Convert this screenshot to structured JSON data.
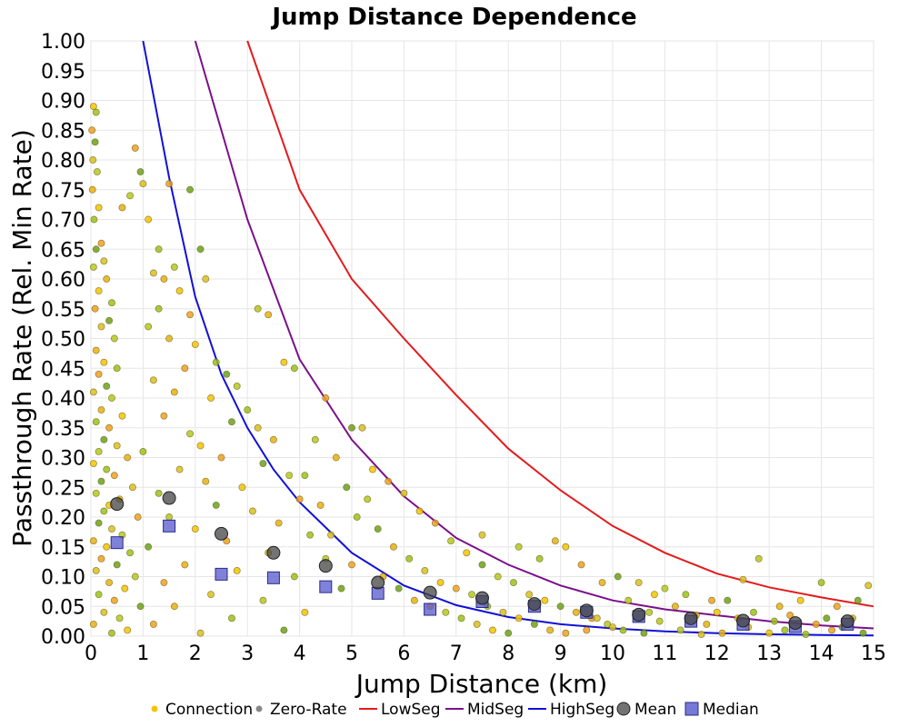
{
  "chart_data": {
    "type": "scatter",
    "title": "Jump Distance Dependence",
    "xlabel": "Jump Distance (km)",
    "ylabel": "Passthrough Rate (Rel. Min Rate)",
    "xlim": [
      0,
      15
    ],
    "ylim": [
      0,
      1.0
    ],
    "x_ticks": [
      "0",
      "1",
      "2",
      "3",
      "4",
      "5",
      "6",
      "7",
      "8",
      "9",
      "10",
      "11",
      "12",
      "13",
      "14",
      "15"
    ],
    "y_ticks": [
      "0.00",
      "0.05",
      "0.10",
      "0.15",
      "0.20",
      "0.25",
      "0.30",
      "0.35",
      "0.40",
      "0.45",
      "0.50",
      "0.55",
      "0.60",
      "0.65",
      "0.70",
      "0.75",
      "0.80",
      "0.85",
      "0.90",
      "0.95",
      "1.00"
    ],
    "grid": true,
    "legend_position": "bottom",
    "legend": [
      {
        "label": "Connection",
        "kind": "dot",
        "color": "#f5c400"
      },
      {
        "label": "Zero-Rate",
        "kind": "dot",
        "color": "#888888"
      },
      {
        "label": "LowSeg",
        "kind": "line",
        "color": "#e41a1c"
      },
      {
        "label": "MidSeg",
        "kind": "line",
        "color": "#7b0f8c"
      },
      {
        "label": "HighSeg",
        "kind": "line",
        "color": "#1010d8"
      },
      {
        "label": "Mean",
        "kind": "circle",
        "color": "#555555"
      },
      {
        "label": "Median",
        "kind": "square",
        "color": "#5558cc"
      }
    ],
    "curves": [
      {
        "name": "LowSeg",
        "color": "#e41a1c",
        "x": [
          3,
          4,
          5,
          6,
          7,
          8,
          9,
          10,
          11,
          12,
          13,
          14,
          15
        ],
        "y": [
          1.0,
          0.75,
          0.6,
          0.5,
          0.405,
          0.315,
          0.245,
          0.185,
          0.14,
          0.105,
          0.082,
          0.065,
          0.05
        ]
      },
      {
        "name": "MidSeg",
        "color": "#7b0f8c",
        "x": [
          2,
          3,
          4,
          5,
          6,
          7,
          8,
          9,
          10,
          11,
          12,
          13,
          14,
          15
        ],
        "y": [
          1.0,
          0.7,
          0.465,
          0.33,
          0.235,
          0.165,
          0.12,
          0.085,
          0.06,
          0.045,
          0.035,
          0.025,
          0.018,
          0.013
        ]
      },
      {
        "name": "HighSeg",
        "color": "#1010d8",
        "x": [
          1,
          1.5,
          2,
          2.5,
          3,
          3.5,
          4,
          5,
          6,
          7,
          8,
          9,
          10,
          11,
          12,
          13,
          14,
          15
        ],
        "y": [
          1.0,
          0.77,
          0.57,
          0.44,
          0.35,
          0.28,
          0.225,
          0.14,
          0.085,
          0.052,
          0.032,
          0.02,
          0.013,
          0.008,
          0.005,
          0.003,
          0.002,
          0.001
        ]
      }
    ],
    "mean": {
      "x": [
        0.5,
        1.5,
        2.5,
        3.5,
        4.5,
        5.5,
        6.5,
        7.5,
        8.5,
        9.5,
        10.5,
        11.5,
        12.5,
        13.5,
        14.5
      ],
      "y": [
        0.222,
        0.232,
        0.172,
        0.14,
        0.118,
        0.09,
        0.073,
        0.064,
        0.054,
        0.043,
        0.036,
        0.03,
        0.026,
        0.022,
        0.025
      ]
    },
    "median": {
      "x": [
        0.5,
        1.5,
        2.5,
        3.5,
        4.5,
        5.5,
        6.5,
        7.5,
        8.5,
        9.5,
        10.5,
        11.5,
        12.5,
        13.5,
        14.5
      ],
      "y": [
        0.157,
        0.185,
        0.104,
        0.098,
        0.083,
        0.072,
        0.045,
        0.058,
        0.05,
        0.04,
        0.033,
        0.025,
        0.02,
        0.016,
        0.02
      ]
    },
    "connection_points": [
      [
        0.05,
        0.89
      ],
      [
        0.1,
        0.88
      ],
      [
        0.02,
        0.85
      ],
      [
        0.08,
        0.83
      ],
      [
        0.04,
        0.8
      ],
      [
        0.12,
        0.78
      ],
      [
        0.03,
        0.75
      ],
      [
        0.15,
        0.72
      ],
      [
        0.06,
        0.7
      ],
      [
        0.2,
        0.66
      ],
      [
        0.1,
        0.65
      ],
      [
        0.25,
        0.63
      ],
      [
        0.05,
        0.62
      ],
      [
        0.3,
        0.6
      ],
      [
        0.15,
        0.58
      ],
      [
        0.4,
        0.56
      ],
      [
        0.08,
        0.55
      ],
      [
        0.35,
        0.53
      ],
      [
        0.2,
        0.52
      ],
      [
        0.45,
        0.5
      ],
      [
        0.1,
        0.48
      ],
      [
        0.25,
        0.46
      ],
      [
        0.5,
        0.45
      ],
      [
        0.15,
        0.44
      ],
      [
        0.3,
        0.42
      ],
      [
        0.05,
        0.41
      ],
      [
        0.4,
        0.4
      ],
      [
        0.2,
        0.38
      ],
      [
        0.6,
        0.37
      ],
      [
        0.1,
        0.36
      ],
      [
        0.35,
        0.35
      ],
      [
        0.25,
        0.33
      ],
      [
        0.5,
        0.32
      ],
      [
        0.15,
        0.31
      ],
      [
        0.7,
        0.3
      ],
      [
        0.05,
        0.29
      ],
      [
        0.3,
        0.28
      ],
      [
        0.45,
        0.27
      ],
      [
        0.2,
        0.26
      ],
      [
        0.8,
        0.25
      ],
      [
        0.1,
        0.24
      ],
      [
        0.55,
        0.23
      ],
      [
        0.35,
        0.22
      ],
      [
        0.25,
        0.21
      ],
      [
        0.9,
        0.2
      ],
      [
        0.15,
        0.19
      ],
      [
        0.4,
        0.18
      ],
      [
        0.6,
        0.17
      ],
      [
        0.05,
        0.16
      ],
      [
        0.3,
        0.15
      ],
      [
        0.75,
        0.14
      ],
      [
        0.2,
        0.13
      ],
      [
        0.5,
        0.12
      ],
      [
        0.1,
        0.11
      ],
      [
        0.85,
        0.1
      ],
      [
        0.35,
        0.09
      ],
      [
        0.65,
        0.08
      ],
      [
        0.15,
        0.07
      ],
      [
        0.45,
        0.06
      ],
      [
        0.95,
        0.05
      ],
      [
        0.25,
        0.04
      ],
      [
        0.55,
        0.03
      ],
      [
        0.05,
        0.02
      ],
      [
        0.7,
        0.01
      ],
      [
        0.4,
        0.005
      ],
      [
        0.85,
        0.82
      ],
      [
        0.95,
        0.78
      ],
      [
        1.0,
        0.76
      ],
      [
        0.75,
        0.74
      ],
      [
        0.6,
        0.72
      ],
      [
        1.1,
        0.7
      ],
      [
        1.3,
        0.65
      ],
      [
        1.5,
        0.76
      ],
      [
        1.9,
        0.75
      ],
      [
        1.2,
        0.61
      ],
      [
        1.6,
        0.62
      ],
      [
        1.4,
        0.6
      ],
      [
        1.7,
        0.58
      ],
      [
        1.3,
        0.55
      ],
      [
        1.9,
        0.54
      ],
      [
        2.1,
        0.65
      ],
      [
        2.2,
        0.6
      ],
      [
        1.1,
        0.52
      ],
      [
        1.5,
        0.5
      ],
      [
        2.0,
        0.49
      ],
      [
        2.4,
        0.46
      ],
      [
        1.8,
        0.45
      ],
      [
        2.6,
        0.44
      ],
      [
        1.2,
        0.43
      ],
      [
        2.8,
        0.42
      ],
      [
        1.6,
        0.41
      ],
      [
        2.3,
        0.4
      ],
      [
        3.0,
        0.38
      ],
      [
        1.4,
        0.37
      ],
      [
        2.7,
        0.36
      ],
      [
        3.2,
        0.35
      ],
      [
        1.9,
        0.34
      ],
      [
        3.5,
        0.33
      ],
      [
        2.1,
        0.32
      ],
      [
        1.0,
        0.31
      ],
      [
        2.5,
        0.3
      ],
      [
        3.3,
        0.29
      ],
      [
        1.7,
        0.28
      ],
      [
        3.8,
        0.27
      ],
      [
        2.2,
        0.26
      ],
      [
        2.9,
        0.25
      ],
      [
        1.3,
        0.24
      ],
      [
        4.0,
        0.23
      ],
      [
        2.4,
        0.22
      ],
      [
        3.1,
        0.21
      ],
      [
        1.5,
        0.2
      ],
      [
        3.6,
        0.19
      ],
      [
        2.0,
        0.18
      ],
      [
        4.2,
        0.17
      ],
      [
        2.6,
        0.16
      ],
      [
        1.1,
        0.15
      ],
      [
        3.4,
        0.14
      ],
      [
        4.5,
        0.13
      ],
      [
        1.8,
        0.12
      ],
      [
        2.8,
        0.11
      ],
      [
        3.9,
        0.1
      ],
      [
        1.4,
        0.09
      ],
      [
        4.8,
        0.08
      ],
      [
        2.3,
        0.07
      ],
      [
        3.3,
        0.06
      ],
      [
        1.6,
        0.05
      ],
      [
        4.1,
        0.04
      ],
      [
        2.7,
        0.03
      ],
      [
        1.2,
        0.02
      ],
      [
        3.7,
        0.01
      ],
      [
        2.1,
        0.005
      ],
      [
        3.2,
        0.55
      ],
      [
        3.4,
        0.54
      ],
      [
        3.7,
        0.46
      ],
      [
        3.9,
        0.45
      ],
      [
        4.5,
        0.4
      ],
      [
        5.0,
        0.35
      ],
      [
        5.2,
        0.35
      ],
      [
        4.3,
        0.33
      ],
      [
        4.7,
        0.3
      ],
      [
        5.4,
        0.28
      ],
      [
        4.1,
        0.27
      ],
      [
        5.7,
        0.26
      ],
      [
        4.9,
        0.25
      ],
      [
        6.0,
        0.24
      ],
      [
        5.3,
        0.23
      ],
      [
        4.4,
        0.22
      ],
      [
        6.3,
        0.21
      ],
      [
        5.1,
        0.2
      ],
      [
        6.6,
        0.19
      ],
      [
        5.5,
        0.18
      ],
      [
        4.6,
        0.17
      ],
      [
        6.9,
        0.16
      ],
      [
        5.8,
        0.15
      ],
      [
        7.2,
        0.14
      ],
      [
        6.1,
        0.13
      ],
      [
        5.0,
        0.12
      ],
      [
        7.5,
        0.12
      ],
      [
        6.4,
        0.11
      ],
      [
        7.8,
        0.1
      ],
      [
        5.6,
        0.1
      ],
      [
        6.7,
        0.09
      ],
      [
        8.1,
        0.09
      ],
      [
        7.0,
        0.08
      ],
      [
        5.9,
        0.08
      ],
      [
        8.4,
        0.07
      ],
      [
        7.3,
        0.07
      ],
      [
        6.2,
        0.06
      ],
      [
        8.7,
        0.06
      ],
      [
        7.6,
        0.05
      ],
      [
        6.5,
        0.05
      ],
      [
        9.0,
        0.05
      ],
      [
        7.9,
        0.04
      ],
      [
        6.8,
        0.04
      ],
      [
        9.3,
        0.04
      ],
      [
        8.2,
        0.03
      ],
      [
        7.1,
        0.03
      ],
      [
        9.6,
        0.03
      ],
      [
        8.5,
        0.02
      ],
      [
        7.4,
        0.02
      ],
      [
        9.9,
        0.02
      ],
      [
        8.8,
        0.01
      ],
      [
        7.7,
        0.01
      ],
      [
        10.2,
        0.01
      ],
      [
        9.1,
        0.005
      ],
      [
        8.0,
        0.005
      ],
      [
        7.5,
        0.17
      ],
      [
        8.2,
        0.15
      ],
      [
        8.9,
        0.16
      ],
      [
        9.1,
        0.15
      ],
      [
        8.6,
        0.13
      ],
      [
        9.4,
        0.12
      ],
      [
        10.1,
        0.1
      ],
      [
        10.5,
        0.09
      ],
      [
        11.0,
        0.08
      ],
      [
        9.8,
        0.09
      ],
      [
        10.8,
        0.07
      ],
      [
        11.4,
        0.07
      ],
      [
        11.9,
        0.06
      ],
      [
        12.2,
        0.06
      ],
      [
        12.5,
        0.095
      ],
      [
        12.8,
        0.13
      ],
      [
        13.2,
        0.05
      ],
      [
        13.6,
        0.06
      ],
      [
        14.0,
        0.09
      ],
      [
        14.3,
        0.05
      ],
      [
        14.7,
        0.06
      ],
      [
        14.9,
        0.085
      ],
      [
        10.3,
        0.06
      ],
      [
        11.2,
        0.05
      ],
      [
        12.0,
        0.04
      ],
      [
        12.7,
        0.04
      ],
      [
        13.4,
        0.035
      ],
      [
        14.1,
        0.03
      ],
      [
        14.6,
        0.03
      ],
      [
        10.7,
        0.04
      ],
      [
        11.6,
        0.035
      ],
      [
        12.4,
        0.03
      ],
      [
        13.1,
        0.025
      ],
      [
        13.9,
        0.02
      ],
      [
        14.4,
        0.015
      ],
      [
        9.7,
        0.03
      ],
      [
        10.9,
        0.025
      ],
      [
        11.8,
        0.02
      ],
      [
        12.6,
        0.015
      ],
      [
        13.3,
        0.01
      ],
      [
        14.2,
        0.01
      ],
      [
        14.8,
        0.005
      ],
      [
        10.0,
        0.015
      ],
      [
        11.3,
        0.01
      ],
      [
        12.1,
        0.005
      ],
      [
        13.0,
        0.005
      ],
      [
        13.7,
        0.003
      ],
      [
        9.5,
        0.01
      ],
      [
        10.6,
        0.005
      ],
      [
        11.7,
        0.003
      ]
    ]
  }
}
